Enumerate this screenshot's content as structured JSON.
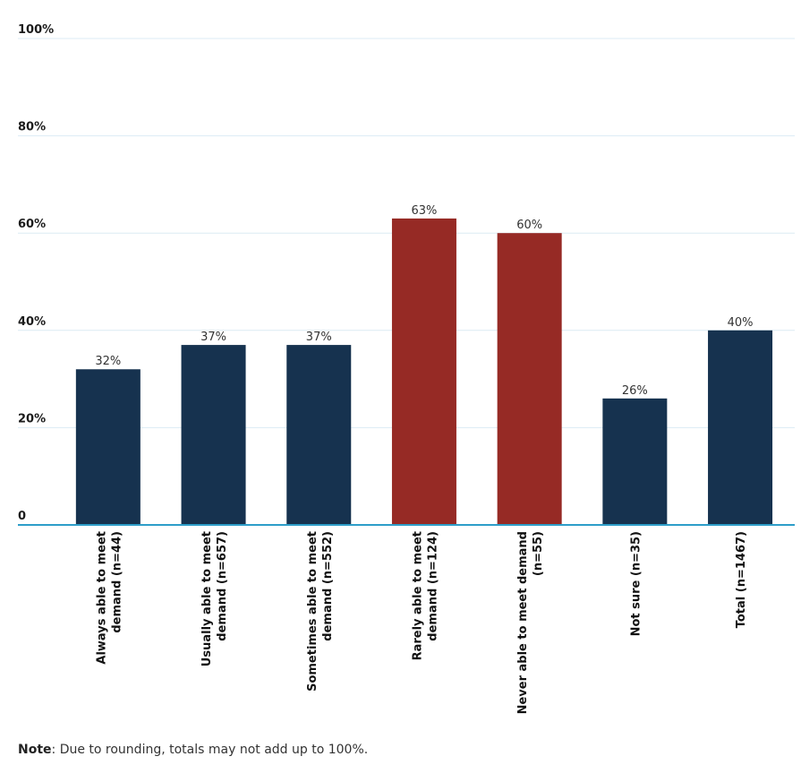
{
  "chart_data": {
    "type": "bar",
    "categories": [
      [
        "Always able to meet",
        "demand (n=44)"
      ],
      [
        "Usually able to meet",
        "demand (n=657)"
      ],
      [
        "Sometimes able to meet",
        "demand (n=552)"
      ],
      [
        "Rarely able to meet",
        "demand (n=124)"
      ],
      [
        "Never able to meet demand",
        "(n=55)"
      ],
      [
        "Not sure (n=35)"
      ],
      [
        "Total (n=1467)"
      ]
    ],
    "values": [
      32,
      37,
      37,
      63,
      60,
      26,
      40
    ],
    "value_labels": [
      "32%",
      "37%",
      "37%",
      "63%",
      "60%",
      "26%",
      "40%"
    ],
    "bar_colors": [
      "#16324f",
      "#16324f",
      "#16324f",
      "#962a25",
      "#962a25",
      "#16324f",
      "#16324f"
    ],
    "ylim": [
      0,
      100
    ],
    "y_ticks": [
      {
        "value": 0,
        "label": "0"
      },
      {
        "value": 20,
        "label": "20%"
      },
      {
        "value": 40,
        "label": "40%"
      },
      {
        "value": 60,
        "label": "60%"
      },
      {
        "value": 80,
        "label": "80%"
      },
      {
        "value": 100,
        "label": "100%"
      }
    ],
    "grid": true,
    "colors": {
      "grid": "#dcebf4",
      "baseline": "#2e9ec9",
      "tick_text": "#1c1c1c",
      "value_text": "#333333",
      "category_text": "#111111"
    }
  },
  "note": {
    "label": "Note",
    "text": ": Due to rounding, totals may not add up to 100%."
  }
}
